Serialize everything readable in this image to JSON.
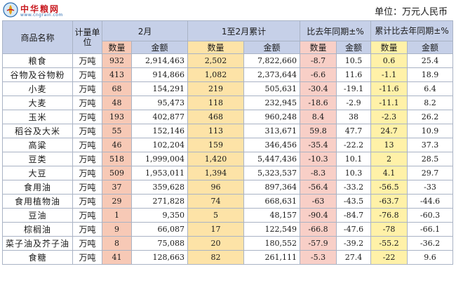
{
  "brand": {
    "name": "中华粮网",
    "url": "www.cngrain.com"
  },
  "unit_label": "单位：万元人民币",
  "headers": {
    "name": "商品名称",
    "unit": "计量单位",
    "feb": "2月",
    "jan_feb": "1至2月累计",
    "yoy": "比去年同期±%",
    "cum_yoy": "累计比去年同期±%",
    "qty": "数量",
    "amt": "金额"
  },
  "rows": [
    {
      "name": "粮食",
      "unit": "万吨",
      "q1": "932",
      "a1": "2,914,463",
      "q2": "2,502",
      "a2": "7,822,660",
      "q3": "-8.7",
      "a3": "10.5",
      "q4": "0.6",
      "a4": "25.4"
    },
    {
      "name": "谷物及谷物粉",
      "unit": "万吨",
      "q1": "413",
      "a1": "914,866",
      "q2": "1,082",
      "a2": "2,373,644",
      "q3": "-6.6",
      "a3": "11.6",
      "q4": "-1.1",
      "a4": "18.9"
    },
    {
      "name": "小麦",
      "unit": "万吨",
      "q1": "68",
      "a1": "154,291",
      "q2": "219",
      "a2": "505,631",
      "q3": "-30.4",
      "a3": "-19.1",
      "q4": "-11.6",
      "a4": "6.4"
    },
    {
      "name": "大麦",
      "unit": "万吨",
      "q1": "48",
      "a1": "95,473",
      "q2": "118",
      "a2": "232,945",
      "q3": "-18.6",
      "a3": "-2.9",
      "q4": "-11.1",
      "a4": "8.2"
    },
    {
      "name": "玉米",
      "unit": "万吨",
      "q1": "193",
      "a1": "402,877",
      "q2": "468",
      "a2": "960,248",
      "q3": "8.4",
      "a3": "38",
      "q4": "-2.3",
      "a4": "26.2"
    },
    {
      "name": "稻谷及大米",
      "unit": "万吨",
      "q1": "55",
      "a1": "152,146",
      "q2": "113",
      "a2": "313,671",
      "q3": "59.8",
      "a3": "47.7",
      "q4": "24.7",
      "a4": "10.9"
    },
    {
      "name": "高粱",
      "unit": "万吨",
      "q1": "46",
      "a1": "102,204",
      "q2": "159",
      "a2": "346,456",
      "q3": "-35.4",
      "a3": "-22.2",
      "q4": "13",
      "a4": "37.3"
    },
    {
      "name": "豆类",
      "unit": "万吨",
      "q1": "518",
      "a1": "1,999,004",
      "q2": "1,420",
      "a2": "5,447,436",
      "q3": "-10.3",
      "a3": "10.1",
      "q4": "2",
      "a4": "28.5"
    },
    {
      "name": "大豆",
      "unit": "万吨",
      "q1": "509",
      "a1": "1,953,011",
      "q2": "1,394",
      "a2": "5,323,537",
      "q3": "-8.3",
      "a3": "10.3",
      "q4": "4.1",
      "a4": "29.7"
    },
    {
      "name": "食用油",
      "unit": "万吨",
      "q1": "37",
      "a1": "359,628",
      "q2": "96",
      "a2": "897,364",
      "q3": "-56.4",
      "a3": "-33.2",
      "q4": "-56.5",
      "a4": "-33"
    },
    {
      "name": "食用植物油",
      "unit": "万吨",
      "q1": "29",
      "a1": "271,828",
      "q2": "74",
      "a2": "668,631",
      "q3": "-63",
      "a3": "-43.5",
      "q4": "-63.7",
      "a4": "-44.6"
    },
    {
      "name": "豆油",
      "unit": "万吨",
      "q1": "1",
      "a1": "9,350",
      "q2": "5",
      "a2": "48,157",
      "q3": "-90.4",
      "a3": "-84.7",
      "q4": "-76.8",
      "a4": "-60.3"
    },
    {
      "name": "棕榈油",
      "unit": "万吨",
      "q1": "9",
      "a1": "66,087",
      "q2": "17",
      "a2": "122,549",
      "q3": "-66.8",
      "a3": "-47.6",
      "q4": "-78",
      "a4": "-66.1"
    },
    {
      "name": "菜子油及芥子油",
      "unit": "万吨",
      "q1": "8",
      "a1": "75,088",
      "q2": "20",
      "a2": "180,552",
      "q3": "-57.9",
      "a3": "-39.2",
      "q4": "-55.2",
      "a4": "-36.2"
    },
    {
      "name": "食糖",
      "unit": "万吨",
      "q1": "41",
      "a1": "128,663",
      "q2": "82",
      "a2": "261,111",
      "q3": "-5.3",
      "a3": "27.4",
      "q4": "-22",
      "a4": "9.6"
    }
  ]
}
